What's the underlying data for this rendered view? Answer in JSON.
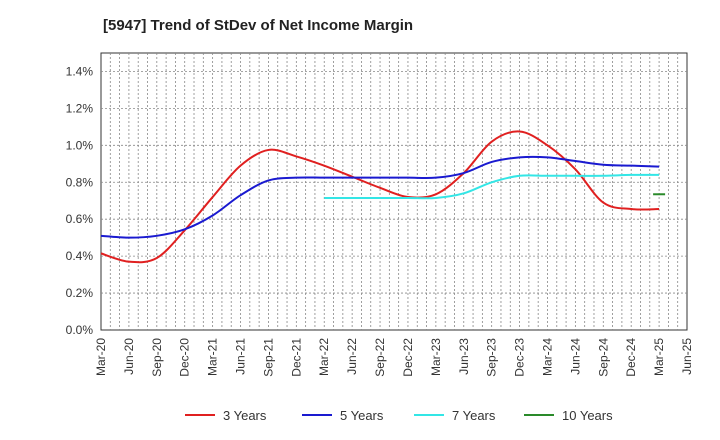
{
  "chart_data": {
    "type": "line",
    "title": "[5947]  Trend of StDev of Net Income Margin",
    "xlabel": "",
    "ylabel": "",
    "ylim": [
      0,
      1.5
    ],
    "yticks": [
      "0.0%",
      "0.2%",
      "0.4%",
      "0.6%",
      "0.8%",
      "1.0%",
      "1.2%",
      "1.4%"
    ],
    "ytick_values": [
      0,
      0.2,
      0.4,
      0.6,
      0.8,
      1.0,
      1.2,
      1.4
    ],
    "categories": [
      "Mar-20",
      "Jun-20",
      "Sep-20",
      "Dec-20",
      "Mar-21",
      "Jun-21",
      "Sep-21",
      "Dec-21",
      "Mar-22",
      "Jun-22",
      "Sep-22",
      "Dec-22",
      "Mar-23",
      "Jun-23",
      "Sep-23",
      "Dec-23",
      "Mar-24",
      "Jun-24",
      "Sep-24",
      "Dec-24",
      "Mar-25",
      "Jun-25"
    ],
    "grid": true,
    "legend_position": "bottom",
    "series": [
      {
        "name": "3 Years",
        "color": "#e02020",
        "values": [
          0.415,
          0.37,
          0.39,
          0.54,
          0.72,
          0.89,
          0.975,
          0.94,
          0.89,
          0.83,
          0.77,
          0.72,
          0.735,
          0.85,
          1.02,
          1.075,
          1.0,
          0.87,
          0.69,
          0.655,
          0.655,
          null
        ]
      },
      {
        "name": "5 Years",
        "color": "#1a1ad0",
        "values": [
          0.51,
          0.5,
          0.51,
          0.545,
          0.62,
          0.73,
          0.81,
          0.825,
          0.825,
          0.825,
          0.825,
          0.825,
          0.825,
          0.85,
          0.91,
          0.935,
          0.935,
          0.915,
          0.895,
          0.89,
          0.885,
          null
        ]
      },
      {
        "name": "7 Years",
        "color": "#33e6e6",
        "values": [
          null,
          null,
          null,
          null,
          null,
          null,
          null,
          null,
          0.715,
          0.715,
          0.715,
          0.715,
          0.715,
          0.74,
          0.8,
          0.835,
          0.835,
          0.835,
          0.835,
          0.84,
          0.84,
          null
        ]
      },
      {
        "name": "10 Years",
        "color": "#2a8a2a",
        "values": [
          null,
          null,
          null,
          null,
          null,
          null,
          null,
          null,
          null,
          null,
          null,
          null,
          null,
          null,
          null,
          null,
          null,
          null,
          null,
          null,
          0.735,
          null
        ]
      }
    ]
  }
}
